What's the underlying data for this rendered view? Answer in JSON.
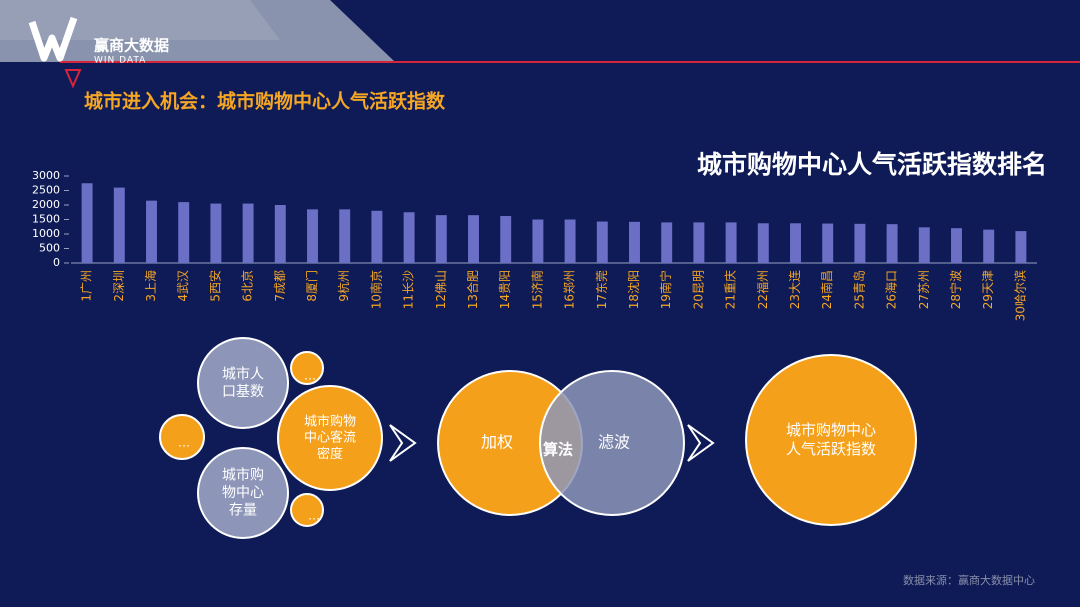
{
  "header": {
    "brand": "赢商大数据",
    "brand_sub": "WIN DATA",
    "title": "城市进入机会：城市购物中心人气活跃指数"
  },
  "chart_data": {
    "type": "bar",
    "title": "城市购物中心人气活跃指数排名",
    "categories": [
      "1广州",
      "2深圳",
      "3上海",
      "4武汉",
      "5西安",
      "6北京",
      "7成都",
      "8厦门",
      "9杭州",
      "10南京",
      "11长沙",
      "12佛山",
      "13合肥",
      "14贵阳",
      "15济南",
      "16郑州",
      "17东莞",
      "18沈阳",
      "19南宁",
      "20昆明",
      "21重庆",
      "22福州",
      "23大连",
      "24南昌",
      "25青岛",
      "26海口",
      "27苏州",
      "28宁波",
      "29天津",
      "30哈尔滨"
    ],
    "values": [
      2750,
      2600,
      2150,
      2100,
      2050,
      2050,
      2000,
      1850,
      1850,
      1800,
      1750,
      1650,
      1650,
      1620,
      1500,
      1500,
      1430,
      1420,
      1400,
      1400,
      1400,
      1370,
      1370,
      1360,
      1350,
      1340,
      1230,
      1200,
      1150,
      1100
    ],
    "color": "#6b6fc6",
    "ylim": [
      0,
      3000
    ],
    "yticks": [
      0,
      500,
      1000,
      1500,
      2000,
      2500,
      3000
    ],
    "grid": false
  },
  "diagram": {
    "nodes": [
      {
        "lines": [
          "城市人",
          "口基数"
        ]
      },
      {
        "lines": [
          "…"
        ]
      },
      {
        "lines": [
          "…"
        ]
      },
      {
        "lines": [
          "城市购",
          "物中心",
          "存量"
        ]
      },
      {
        "lines": [
          "城市购物",
          "中心客流",
          "密度"
        ]
      },
      {
        "lines": [
          "…"
        ]
      },
      {
        "lines": [
          "加权"
        ]
      },
      {
        "lines": [
          "滤波"
        ]
      },
      {
        "lines": [
          "算法"
        ]
      },
      {
        "lines": [
          "城市购物中心",
          "人气活跃指数"
        ]
      }
    ]
  },
  "source": "数据来源：赢商大数据中心"
}
